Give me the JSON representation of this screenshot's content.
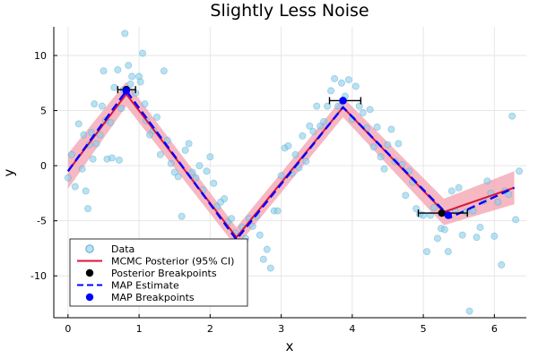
{
  "chart_data": {
    "type": "scatter",
    "title": "Slightly Less Noise",
    "xlabel": "x",
    "ylabel": "y",
    "xlim": [
      -0.2,
      6.45
    ],
    "ylim": [
      -13.8,
      12.6
    ],
    "xticks": [
      0,
      1,
      2,
      3,
      4,
      5,
      6
    ],
    "yticks": [
      -10,
      -5,
      0,
      5,
      10
    ],
    "grid": true,
    "legend_position": "bottom-left",
    "colors": {
      "data": "#87ceeb",
      "posterior": "#dc143c",
      "band": "#f4a6b4",
      "map": "#0000ff",
      "breakpoint": "#000000",
      "axis": "#000000",
      "grid": "#e6e6e6"
    },
    "legend": [
      {
        "label": "Data",
        "kind": "marker",
        "color": "#87ceeb"
      },
      {
        "label": "MCMC Posterior (95% CI)",
        "kind": "line",
        "color": "#dc143c"
      },
      {
        "label": "Posterior Breakpoints",
        "kind": "marker",
        "color": "#000000"
      },
      {
        "label": "MAP Estimate",
        "kind": "dashed",
        "color": "#0000ff"
      },
      {
        "label": "MAP Breakpoints",
        "kind": "marker",
        "color": "#0000ff"
      }
    ],
    "series": [
      {
        "name": "Data",
        "points": [
          [
            0.0,
            -1.1
          ],
          [
            0.05,
            1.0
          ],
          [
            0.1,
            -1.9
          ],
          [
            0.15,
            3.8
          ],
          [
            0.2,
            -0.3
          ],
          [
            0.22,
            2.8
          ],
          [
            0.25,
            -2.3
          ],
          [
            0.28,
            -3.9
          ],
          [
            0.3,
            1.9
          ],
          [
            0.33,
            3.0
          ],
          [
            0.35,
            0.6
          ],
          [
            0.37,
            5.6
          ],
          [
            0.4,
            2.0
          ],
          [
            0.45,
            2.8
          ],
          [
            0.48,
            5.4
          ],
          [
            0.5,
            8.6
          ],
          [
            0.53,
            4.1
          ],
          [
            0.55,
            0.6
          ],
          [
            0.6,
            3.9
          ],
          [
            0.62,
            0.7
          ],
          [
            0.65,
            7.1
          ],
          [
            0.7,
            8.7
          ],
          [
            0.72,
            0.5
          ],
          [
            0.75,
            5.2
          ],
          [
            0.78,
            6.9
          ],
          [
            0.8,
            12.0
          ],
          [
            0.85,
            9.1
          ],
          [
            0.88,
            7.4
          ],
          [
            0.9,
            8.1
          ],
          [
            0.95,
            6.6
          ],
          [
            1.0,
            8.1
          ],
          [
            1.02,
            7.6
          ],
          [
            1.05,
            10.2
          ],
          [
            1.08,
            5.6
          ],
          [
            1.1,
            4.1
          ],
          [
            1.15,
            2.8
          ],
          [
            1.2,
            3.2
          ],
          [
            1.25,
            4.4
          ],
          [
            1.3,
            1.0
          ],
          [
            1.35,
            8.6
          ],
          [
            1.4,
            2.3
          ],
          [
            1.45,
            0.2
          ],
          [
            1.5,
            -0.6
          ],
          [
            1.55,
            -1.0
          ],
          [
            1.6,
            -4.6
          ],
          [
            1.65,
            1.4
          ],
          [
            1.7,
            2.0
          ],
          [
            1.75,
            -0.6
          ],
          [
            1.8,
            -1.1
          ],
          [
            1.85,
            0.0
          ],
          [
            1.9,
            -2.2
          ],
          [
            1.95,
            -0.5
          ],
          [
            2.0,
            0.8
          ],
          [
            2.05,
            -1.6
          ],
          [
            2.1,
            -3.7
          ],
          [
            2.15,
            -3.3
          ],
          [
            2.2,
            -3.0
          ],
          [
            2.25,
            -5.1
          ],
          [
            2.3,
            -4.8
          ],
          [
            2.35,
            -6.1
          ],
          [
            2.4,
            -7.9
          ],
          [
            2.45,
            -5.6
          ],
          [
            2.5,
            -6.6
          ],
          [
            2.55,
            -4.8
          ],
          [
            2.6,
            -5.5
          ],
          [
            2.65,
            -4.6
          ],
          [
            2.7,
            -6.3
          ],
          [
            2.75,
            -8.5
          ],
          [
            2.8,
            -7.6
          ],
          [
            2.85,
            -9.3
          ],
          [
            2.9,
            -4.1
          ],
          [
            2.95,
            -4.1
          ],
          [
            3.0,
            -0.9
          ],
          [
            3.05,
            1.6
          ],
          [
            3.1,
            1.8
          ],
          [
            3.15,
            -0.7
          ],
          [
            3.2,
            1.0
          ],
          [
            3.25,
            -0.2
          ],
          [
            3.3,
            2.7
          ],
          [
            3.35,
            0.4
          ],
          [
            3.4,
            3.6
          ],
          [
            3.45,
            3.1
          ],
          [
            3.5,
            5.4
          ],
          [
            3.55,
            3.6
          ],
          [
            3.6,
            4.0
          ],
          [
            3.65,
            5.4
          ],
          [
            3.7,
            6.8
          ],
          [
            3.75,
            7.9
          ],
          [
            3.8,
            5.4
          ],
          [
            3.85,
            7.5
          ],
          [
            3.9,
            6.3
          ],
          [
            3.95,
            7.8
          ],
          [
            4.0,
            4.2
          ],
          [
            4.05,
            7.2
          ],
          [
            4.1,
            5.4
          ],
          [
            4.15,
            4.8
          ],
          [
            4.2,
            3.4
          ],
          [
            4.25,
            5.1
          ],
          [
            4.3,
            1.7
          ],
          [
            4.35,
            3.5
          ],
          [
            4.4,
            0.8
          ],
          [
            4.45,
            -0.3
          ],
          [
            4.5,
            1.9
          ],
          [
            4.55,
            3.3
          ],
          [
            4.6,
            0.4
          ],
          [
            4.65,
            2.0
          ],
          [
            4.7,
            0.1
          ],
          [
            4.75,
            -2.7
          ],
          [
            4.8,
            -0.5
          ],
          [
            4.85,
            -1.5
          ],
          [
            4.9,
            -3.9
          ],
          [
            4.95,
            -4.4
          ],
          [
            5.0,
            -4.5
          ],
          [
            5.05,
            -7.8
          ],
          [
            5.1,
            -4.5
          ],
          [
            5.15,
            -3.8
          ],
          [
            5.2,
            -6.6
          ],
          [
            5.25,
            -5.7
          ],
          [
            5.3,
            -5.8
          ],
          [
            5.35,
            -7.8
          ],
          [
            5.4,
            -2.3
          ],
          [
            5.45,
            -4.1
          ],
          [
            5.5,
            -2.0
          ],
          [
            5.55,
            -6.3
          ],
          [
            5.6,
            -4.2
          ],
          [
            5.65,
            -13.2
          ],
          [
            5.7,
            -4.1
          ],
          [
            5.75,
            -6.5
          ],
          [
            5.8,
            -5.6
          ],
          [
            5.85,
            -3.2
          ],
          [
            5.9,
            -1.4
          ],
          [
            5.95,
            -2.5
          ],
          [
            6.0,
            -6.4
          ],
          [
            6.05,
            -3.3
          ],
          [
            6.1,
            -9.0
          ],
          [
            6.15,
            -2.3
          ],
          [
            6.2,
            -2.6
          ],
          [
            6.25,
            4.5
          ],
          [
            6.3,
            -4.9
          ],
          [
            6.35,
            -0.5
          ]
        ]
      },
      {
        "name": "MCMC Posterior (95% CI)",
        "x": [
          0.0,
          0.82,
          2.37,
          3.87,
          5.29,
          6.28
        ],
        "y": [
          -0.5,
          6.5,
          -6.5,
          5.3,
          -4.2,
          -2.0
        ],
        "ci_half_width": [
          1.6,
          1.1,
          0.9,
          0.9,
          1.2,
          1.5
        ]
      },
      {
        "name": "MAP Estimate",
        "x": [
          0.0,
          0.82,
          2.37,
          3.87,
          5.38,
          6.28
        ],
        "y": [
          -0.5,
          6.8,
          -6.7,
          5.3,
          -4.7,
          -2.0
        ]
      }
    ],
    "posterior_breakpoints": [
      {
        "x": 0.82,
        "y": 6.9,
        "xerr": [
          0.7,
          0.95
        ]
      },
      {
        "x": 3.87,
        "y": 5.9,
        "xerr": [
          3.68,
          4.12
        ]
      },
      {
        "x": 5.26,
        "y": -4.3,
        "xerr": [
          4.93,
          5.62
        ]
      }
    ],
    "map_breakpoints": [
      {
        "x": 0.82,
        "y": 6.8
      },
      {
        "x": 3.87,
        "y": 5.9
      },
      {
        "x": 5.35,
        "y": -4.5
      }
    ]
  }
}
